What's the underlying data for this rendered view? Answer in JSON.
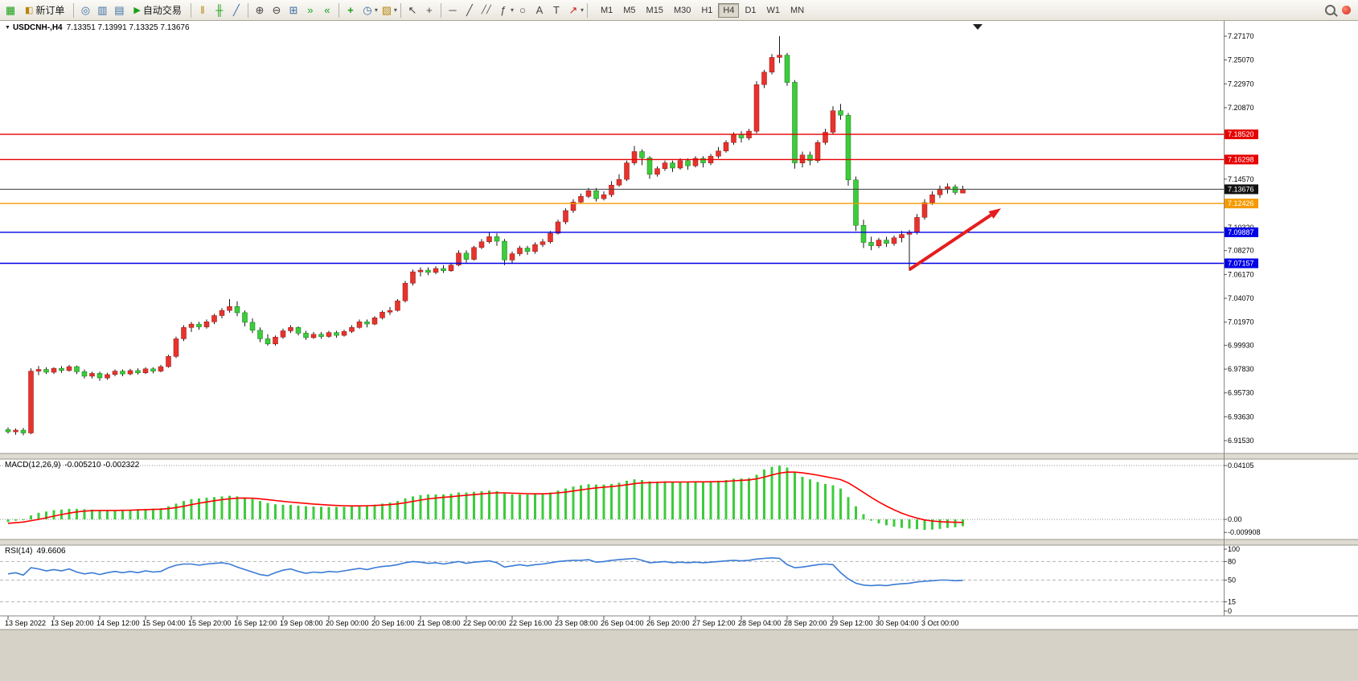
{
  "toolbar": {
    "new_order": "新订单",
    "auto_trading": "自动交易",
    "timeframes": [
      "M1",
      "M5",
      "M15",
      "M30",
      "H1",
      "H4",
      "D1",
      "W1",
      "MN"
    ],
    "active_timeframe": "H4"
  },
  "icons": {
    "new_chart": "▦",
    "new_order": "◧",
    "compass": "◎",
    "market_watch": "▥",
    "data_window": "▤",
    "play": "▶",
    "bar_chart": "‖",
    "candle_chart": "╫",
    "line_chart": "╱",
    "zoom_in": "⊕",
    "zoom_out": "⊖",
    "tile_windows": "⊞",
    "auto_scroll": "»",
    "chart_shift": "«",
    "add_indicator": "+",
    "period": "◷",
    "template": "▨",
    "cursor": "↖",
    "crosshair": "+",
    "hline": "─",
    "trendline": "╱",
    "channel": "╱╱",
    "fibonacci": "ƒ",
    "shapes": "○",
    "text": "A",
    "label": "T",
    "arrows": "↗",
    "dropdown": "▾",
    "title_marker": "▼"
  },
  "window": {
    "symbol": "USDCNH-,H4",
    "ohlc": "7.13351 7.13991 7.13325 7.13676"
  },
  "chart_data": {
    "type": "candlestick",
    "title": "USDCNH-,H4",
    "x_labels": [
      "13 Sep 2022",
      "13 Sep 20:00",
      "14 Sep 12:00",
      "15 Sep 04:00",
      "15 Sep 20:00",
      "16 Sep 12:00",
      "19 Sep 08:00",
      "20 Sep 00:00",
      "20 Sep 16:00",
      "21 Sep 08:00",
      "22 Sep 00:00",
      "22 Sep 16:00",
      "23 Sep 08:00",
      "26 Sep 04:00",
      "26 Sep 20:00",
      "27 Sep 12:00",
      "28 Sep 04:00",
      "28 Sep 20:00",
      "29 Sep 12:00",
      "30 Sep 04:00",
      "3 Oct 00:00"
    ],
    "y_axis": {
      "top": 7.2717,
      "bottom": 6.9153,
      "ticks": [
        "7.27170",
        "7.25070",
        "7.22970",
        "7.20870",
        "7.14570",
        "7.10320",
        "7.08270",
        "7.06170",
        "7.04070",
        "7.01970",
        "6.99930",
        "6.97830",
        "6.95730",
        "6.93630",
        "6.91530"
      ]
    },
    "levels": [
      {
        "price": 7.1852,
        "label": "7.18520",
        "color": "#e60000"
      },
      {
        "price": 7.16298,
        "label": "7.16298",
        "color": "#e60000"
      },
      {
        "price": 7.12426,
        "label": "7.12426",
        "color": "#f59a00"
      },
      {
        "price": 7.09887,
        "label": "7.09887",
        "color": "#0000e6"
      },
      {
        "price": 7.07157,
        "label": "7.07157",
        "color": "#0000e6"
      }
    ],
    "current_price": {
      "price": 7.13676,
      "label": "7.13676",
      "line_color": "#3c3c3c",
      "badge_color": "#111111"
    },
    "colors": {
      "bull": "#e8332d",
      "bear": "#3ccc3c",
      "wick": "#1a1a1a",
      "bull_border": "#8f1410",
      "bear_border": "#157515"
    },
    "candles": [
      [
        6.925,
        6.927,
        6.9215,
        6.923
      ],
      [
        6.923,
        6.926,
        6.9205,
        6.9245
      ],
      [
        6.9245,
        6.9265,
        6.92,
        6.922
      ],
      [
        6.922,
        6.979,
        6.921,
        6.9765
      ],
      [
        6.9765,
        6.981,
        6.973,
        6.978
      ],
      [
        6.978,
        6.98,
        6.974,
        6.9755
      ],
      [
        6.9755,
        6.98,
        6.974,
        6.979
      ],
      [
        6.979,
        6.981,
        6.975,
        6.977
      ],
      [
        6.977,
        6.982,
        6.976,
        6.9805
      ],
      [
        6.9805,
        6.9815,
        6.974,
        6.976
      ],
      [
        6.976,
        6.978,
        6.97,
        6.972
      ],
      [
        6.972,
        6.976,
        6.97,
        6.9745
      ],
      [
        6.9745,
        6.976,
        6.968,
        6.9705
      ],
      [
        6.9705,
        6.975,
        6.969,
        6.9735
      ],
      [
        6.9735,
        6.978,
        6.972,
        6.9765
      ],
      [
        6.9765,
        6.978,
        6.972,
        6.974
      ],
      [
        6.974,
        6.9785,
        6.973,
        6.977
      ],
      [
        6.977,
        6.979,
        6.9735,
        6.975
      ],
      [
        6.975,
        6.98,
        6.974,
        6.9785
      ],
      [
        6.9785,
        6.98,
        6.9745,
        6.9765
      ],
      [
        6.9765,
        6.982,
        6.9755,
        6.9805
      ],
      [
        6.9805,
        6.991,
        6.9795,
        6.9895
      ],
      [
        6.9895,
        7.007,
        6.988,
        7.005
      ],
      [
        7.005,
        7.017,
        7.003,
        7.015
      ],
      [
        7.015,
        7.02,
        7.011,
        7.018
      ],
      [
        7.018,
        7.02,
        7.013,
        7.0155
      ],
      [
        7.0155,
        7.022,
        7.014,
        7.02
      ],
      [
        7.02,
        7.027,
        7.018,
        7.0255
      ],
      [
        7.0255,
        7.032,
        7.023,
        7.03
      ],
      [
        7.03,
        7.04,
        7.028,
        7.0335
      ],
      [
        7.0335,
        7.038,
        7.025,
        7.028
      ],
      [
        7.028,
        7.03,
        7.016,
        7.0195
      ],
      [
        7.0195,
        7.023,
        7.01,
        7.0125
      ],
      [
        7.0125,
        7.015,
        7.002,
        7.005
      ],
      [
        7.005,
        7.009,
        6.999,
        7.0005
      ],
      [
        7.0005,
        7.008,
        6.999,
        7.0065
      ],
      [
        7.0065,
        7.014,
        7.005,
        7.012
      ],
      [
        7.012,
        7.017,
        7.01,
        7.015
      ],
      [
        7.015,
        7.016,
        7.008,
        7.01
      ],
      [
        7.01,
        7.012,
        7.004,
        7.006
      ],
      [
        7.006,
        7.011,
        7.005,
        7.009
      ],
      [
        7.009,
        7.011,
        7.005,
        7.007
      ],
      [
        7.007,
        7.012,
        7.006,
        7.0105
      ],
      [
        7.0105,
        7.012,
        7.006,
        7.008
      ],
      [
        7.008,
        7.013,
        7.007,
        7.0115
      ],
      [
        7.0115,
        7.017,
        7.01,
        7.015
      ],
      [
        7.015,
        7.022,
        7.014,
        7.02
      ],
      [
        7.02,
        7.022,
        7.015,
        7.018
      ],
      [
        7.018,
        7.025,
        7.017,
        7.0235
      ],
      [
        7.0235,
        7.03,
        7.022,
        7.0285
      ],
      [
        7.0285,
        7.033,
        7.026,
        7.03
      ],
      [
        7.03,
        7.04,
        7.029,
        7.0385
      ],
      [
        7.0385,
        7.056,
        7.037,
        7.054
      ],
      [
        7.054,
        7.066,
        7.052,
        7.064
      ],
      [
        7.064,
        7.068,
        7.06,
        7.0655
      ],
      [
        7.0655,
        7.068,
        7.061,
        7.0635
      ],
      [
        7.0635,
        7.069,
        7.062,
        7.067
      ],
      [
        7.067,
        7.07,
        7.063,
        7.065
      ],
      [
        7.065,
        7.072,
        7.064,
        7.07
      ],
      [
        7.07,
        7.083,
        7.069,
        7.0805
      ],
      [
        7.0805,
        7.083,
        7.072,
        7.075
      ],
      [
        7.075,
        7.087,
        7.074,
        7.0855
      ],
      [
        7.0855,
        7.093,
        7.084,
        7.0905
      ],
      [
        7.0905,
        7.099,
        7.089,
        7.095
      ],
      [
        7.095,
        7.098,
        7.087,
        7.091
      ],
      [
        7.091,
        7.093,
        7.07,
        7.0745
      ],
      [
        7.0745,
        7.082,
        7.071,
        7.08
      ],
      [
        7.08,
        7.087,
        7.078,
        7.085
      ],
      [
        7.085,
        7.087,
        7.079,
        7.082
      ],
      [
        7.082,
        7.09,
        7.08,
        7.088
      ],
      [
        7.088,
        7.093,
        7.086,
        7.0905
      ],
      [
        7.0905,
        7.1,
        7.089,
        7.098
      ],
      [
        7.098,
        7.11,
        7.097,
        7.108
      ],
      [
        7.108,
        7.12,
        7.106,
        7.118
      ],
      [
        7.118,
        7.128,
        7.116,
        7.1255
      ],
      [
        7.1255,
        7.133,
        7.124,
        7.1305
      ],
      [
        7.1305,
        7.138,
        7.129,
        7.1355
      ],
      [
        7.1355,
        7.138,
        7.126,
        7.1285
      ],
      [
        7.1285,
        7.135,
        7.127,
        7.132
      ],
      [
        7.132,
        7.144,
        7.13,
        7.1405
      ],
      [
        7.1405,
        7.15,
        7.139,
        7.1455
      ],
      [
        7.1455,
        7.162,
        7.144,
        7.16
      ],
      [
        7.16,
        7.175,
        7.158,
        7.17
      ],
      [
        7.17,
        7.172,
        7.158,
        7.1645
      ],
      [
        7.1645,
        7.166,
        7.146,
        7.15
      ],
      [
        7.15,
        7.157,
        7.148,
        7.155
      ],
      [
        7.155,
        7.162,
        7.153,
        7.16
      ],
      [
        7.16,
        7.162,
        7.152,
        7.1555
      ],
      [
        7.1555,
        7.164,
        7.154,
        7.162
      ],
      [
        7.162,
        7.164,
        7.154,
        7.1575
      ],
      [
        7.1575,
        7.166,
        7.156,
        7.164
      ],
      [
        7.164,
        7.166,
        7.156,
        7.16
      ],
      [
        7.16,
        7.168,
        7.158,
        7.166
      ],
      [
        7.166,
        7.174,
        7.164,
        7.1705
      ],
      [
        7.1705,
        7.18,
        7.169,
        7.178
      ],
      [
        7.178,
        7.187,
        7.176,
        7.185
      ],
      [
        7.185,
        7.188,
        7.178,
        7.182
      ],
      [
        7.182,
        7.19,
        7.18,
        7.188
      ],
      [
        7.188,
        7.232,
        7.186,
        7.229
      ],
      [
        7.229,
        7.242,
        7.226,
        7.24
      ],
      [
        7.24,
        7.256,
        7.238,
        7.253
      ],
      [
        7.253,
        7.2717,
        7.248,
        7.255
      ],
      [
        7.255,
        7.257,
        7.228,
        7.231
      ],
      [
        7.231,
        7.233,
        7.155,
        7.16
      ],
      [
        7.16,
        7.17,
        7.156,
        7.167
      ],
      [
        7.167,
        7.17,
        7.158,
        7.162
      ],
      [
        7.162,
        7.18,
        7.16,
        7.178
      ],
      [
        7.178,
        7.19,
        7.176,
        7.187
      ],
      [
        7.187,
        7.21,
        7.185,
        7.206
      ],
      [
        7.206,
        7.212,
        7.198,
        7.202
      ],
      [
        7.202,
        7.204,
        7.14,
        7.145
      ],
      [
        7.145,
        7.148,
        7.1,
        7.105
      ],
      [
        7.105,
        7.11,
        7.085,
        7.09
      ],
      [
        7.09,
        7.095,
        7.083,
        7.087
      ],
      [
        7.087,
        7.094,
        7.085,
        7.092
      ],
      [
        7.092,
        7.095,
        7.086,
        7.089
      ],
      [
        7.089,
        7.096,
        7.087,
        7.094
      ],
      [
        7.094,
        7.1,
        7.09,
        7.097
      ],
      [
        7.097,
        7.101,
        7.065,
        7.099
      ],
      [
        7.099,
        7.115,
        7.097,
        7.112
      ],
      [
        7.112,
        7.128,
        7.11,
        7.125
      ],
      [
        7.125,
        7.135,
        7.123,
        7.132
      ],
      [
        7.132,
        7.14,
        7.129,
        7.137
      ],
      [
        7.137,
        7.142,
        7.133,
        7.139
      ],
      [
        7.139,
        7.141,
        7.132,
        7.134
      ],
      [
        7.1335,
        7.1399,
        7.1333,
        7.1368
      ]
    ],
    "arrow": {
      "from_bar": 118,
      "from_price": 7.066,
      "to_bar": 130,
      "to_price": 7.12,
      "color": "#e41e1e"
    },
    "macd": {
      "label": "MACD(12,26,9)",
      "values_text": "-0.005210 -0.002322",
      "scale_labels": [
        "0.04105",
        "0.00",
        "-0.009908"
      ],
      "max": 0.04105,
      "min": -0.009908,
      "histogram_color": "#3ccc3c",
      "signal_color": "#ff0000",
      "histogram": [
        -0.002,
        -0.001,
        0,
        0.003,
        0.005,
        0.006,
        0.007,
        0.0075,
        0.008,
        0.008,
        0.0078,
        0.0075,
        0.007,
        0.0068,
        0.007,
        0.0072,
        0.0075,
        0.0078,
        0.008,
        0.0082,
        0.0085,
        0.01,
        0.012,
        0.014,
        0.0155,
        0.016,
        0.0165,
        0.017,
        0.0175,
        0.018,
        0.0175,
        0.0165,
        0.0155,
        0.014,
        0.0125,
        0.0115,
        0.011,
        0.011,
        0.0105,
        0.01,
        0.0098,
        0.0096,
        0.0095,
        0.0095,
        0.0096,
        0.01,
        0.0105,
        0.0108,
        0.0112,
        0.012,
        0.0128,
        0.014,
        0.016,
        0.0175,
        0.0185,
        0.019,
        0.019,
        0.019,
        0.0195,
        0.0205,
        0.0205,
        0.021,
        0.0215,
        0.022,
        0.0215,
        0.02,
        0.019,
        0.019,
        0.019,
        0.0192,
        0.0195,
        0.0205,
        0.022,
        0.0235,
        0.025,
        0.026,
        0.0268,
        0.0265,
        0.0265,
        0.027,
        0.028,
        0.0295,
        0.0305,
        0.03,
        0.029,
        0.0288,
        0.029,
        0.0285,
        0.0288,
        0.0285,
        0.0288,
        0.0285,
        0.029,
        0.0295,
        0.03,
        0.031,
        0.0312,
        0.0315,
        0.034,
        0.038,
        0.04,
        0.041,
        0.0395,
        0.036,
        0.0325,
        0.0305,
        0.0285,
        0.027,
        0.026,
        0.0235,
        0.017,
        0.01,
        0.004,
        -0.001,
        -0.003,
        -0.0045,
        -0.0055,
        -0.0065,
        -0.007,
        -0.0075,
        -0.008,
        -0.0078,
        -0.0072,
        -0.0065,
        -0.006,
        -0.0052
      ],
      "signal": [
        -0.003,
        -0.0025,
        -0.002,
        -0.001,
        0,
        0.0012,
        0.0025,
        0.0037,
        0.0048,
        0.0057,
        0.0063,
        0.0067,
        0.0068,
        0.0068,
        0.0068,
        0.0069,
        0.007,
        0.0072,
        0.0074,
        0.0076,
        0.0078,
        0.0082,
        0.009,
        0.01,
        0.0112,
        0.0123,
        0.0133,
        0.0142,
        0.015,
        0.0157,
        0.0162,
        0.0163,
        0.0161,
        0.0157,
        0.0151,
        0.0144,
        0.0137,
        0.0132,
        0.0127,
        0.0122,
        0.0117,
        0.0113,
        0.0109,
        0.0106,
        0.0104,
        0.0103,
        0.0103,
        0.0104,
        0.0106,
        0.0109,
        0.0113,
        0.0118,
        0.0127,
        0.0137,
        0.0147,
        0.0156,
        0.0163,
        0.0168,
        0.0173,
        0.0179,
        0.0184,
        0.0189,
        0.0194,
        0.0199,
        0.0202,
        0.0202,
        0.02,
        0.0198,
        0.0196,
        0.0195,
        0.0195,
        0.0197,
        0.0202,
        0.0208,
        0.0216,
        0.0225,
        0.0233,
        0.024,
        0.0245,
        0.025,
        0.0256,
        0.0264,
        0.0272,
        0.0278,
        0.028,
        0.0282,
        0.0284,
        0.0284,
        0.0285,
        0.0285,
        0.0286,
        0.0286,
        0.0287,
        0.0288,
        0.029,
        0.0294,
        0.0298,
        0.0301,
        0.0309,
        0.0322,
        0.0338,
        0.0352,
        0.036,
        0.036,
        0.0355,
        0.0347,
        0.0337,
        0.0326,
        0.0315,
        0.0303,
        0.0278,
        0.0243,
        0.0206,
        0.0168,
        0.0133,
        0.0101,
        0.0073,
        0.0048,
        0.0027,
        0.001,
        -0.0004,
        -0.0012,
        -0.0017,
        -0.002,
        -0.0022,
        -0.0023
      ]
    },
    "rsi": {
      "label": "RSI(14)",
      "value_text": "49.6606",
      "scale_labels": [
        "100",
        "80",
        "50",
        "15",
        "0"
      ],
      "levels": [
        80,
        50,
        15
      ],
      "range": [
        0,
        100
      ],
      "line_color": "#3a7bd5",
      "values": [
        60,
        62,
        58,
        70,
        68,
        65,
        67,
        65,
        68,
        63,
        60,
        62,
        59,
        62,
        64,
        62,
        64,
        62,
        65,
        63,
        64,
        70,
        74,
        76,
        76,
        74,
        76,
        77,
        78,
        76,
        71,
        67,
        63,
        59,
        57,
        62,
        66,
        68,
        64,
        61,
        63,
        62,
        64,
        63,
        65,
        67,
        69,
        67,
        70,
        72,
        73,
        75,
        78,
        80,
        79,
        77,
        78,
        76,
        78,
        80,
        77,
        79,
        80,
        81,
        78,
        71,
        73,
        75,
        73,
        75,
        76,
        78,
        80,
        81,
        82,
        82,
        83,
        79,
        80,
        82,
        83,
        84,
        85,
        82,
        78,
        79,
        80,
        78,
        79,
        78,
        79,
        78,
        79,
        80,
        81,
        82,
        81,
        82,
        84,
        85,
        86,
        85,
        75,
        70,
        71,
        73,
        75,
        76,
        75,
        62,
        52,
        45,
        42,
        41,
        42,
        41,
        43,
        44,
        45,
        47,
        48,
        49,
        50,
        50,
        49,
        49.66
      ]
    }
  }
}
